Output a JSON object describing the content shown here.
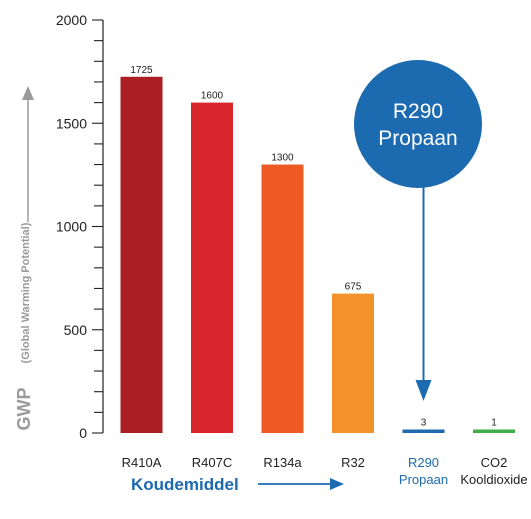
{
  "chart_data": {
    "type": "bar",
    "categories": [
      [
        "R410A"
      ],
      [
        "R407C"
      ],
      [
        "R134a"
      ],
      [
        "R32"
      ],
      [
        "R290",
        "Propaan"
      ],
      [
        "CO2",
        "Kooldioxide"
      ]
    ],
    "values": [
      1725,
      1600,
      1300,
      675,
      3,
      1
    ],
    "data_labels": [
      "1725",
      "1600",
      "1300",
      "675",
      "3",
      "1"
    ],
    "bar_colors": [
      "#ab1e24",
      "#d8262c",
      "#ee5a24",
      "#f3922a",
      "#1c6ab0",
      "#3fae49"
    ],
    "highlight_category_index": 4,
    "highlight_color": "#1c6ab0",
    "ylim": [
      0,
      2000
    ],
    "yticks": [
      0,
      500,
      1000,
      1500,
      2000
    ],
    "ylabel": "GWP",
    "ylabel_sub": "(Global Warming Potential)",
    "xlabel": "Koudemiddel",
    "grid": false,
    "callout": {
      "lines": [
        "R290",
        "Propaan"
      ],
      "color": "#1c6ab0",
      "points_to_index": 4
    }
  }
}
